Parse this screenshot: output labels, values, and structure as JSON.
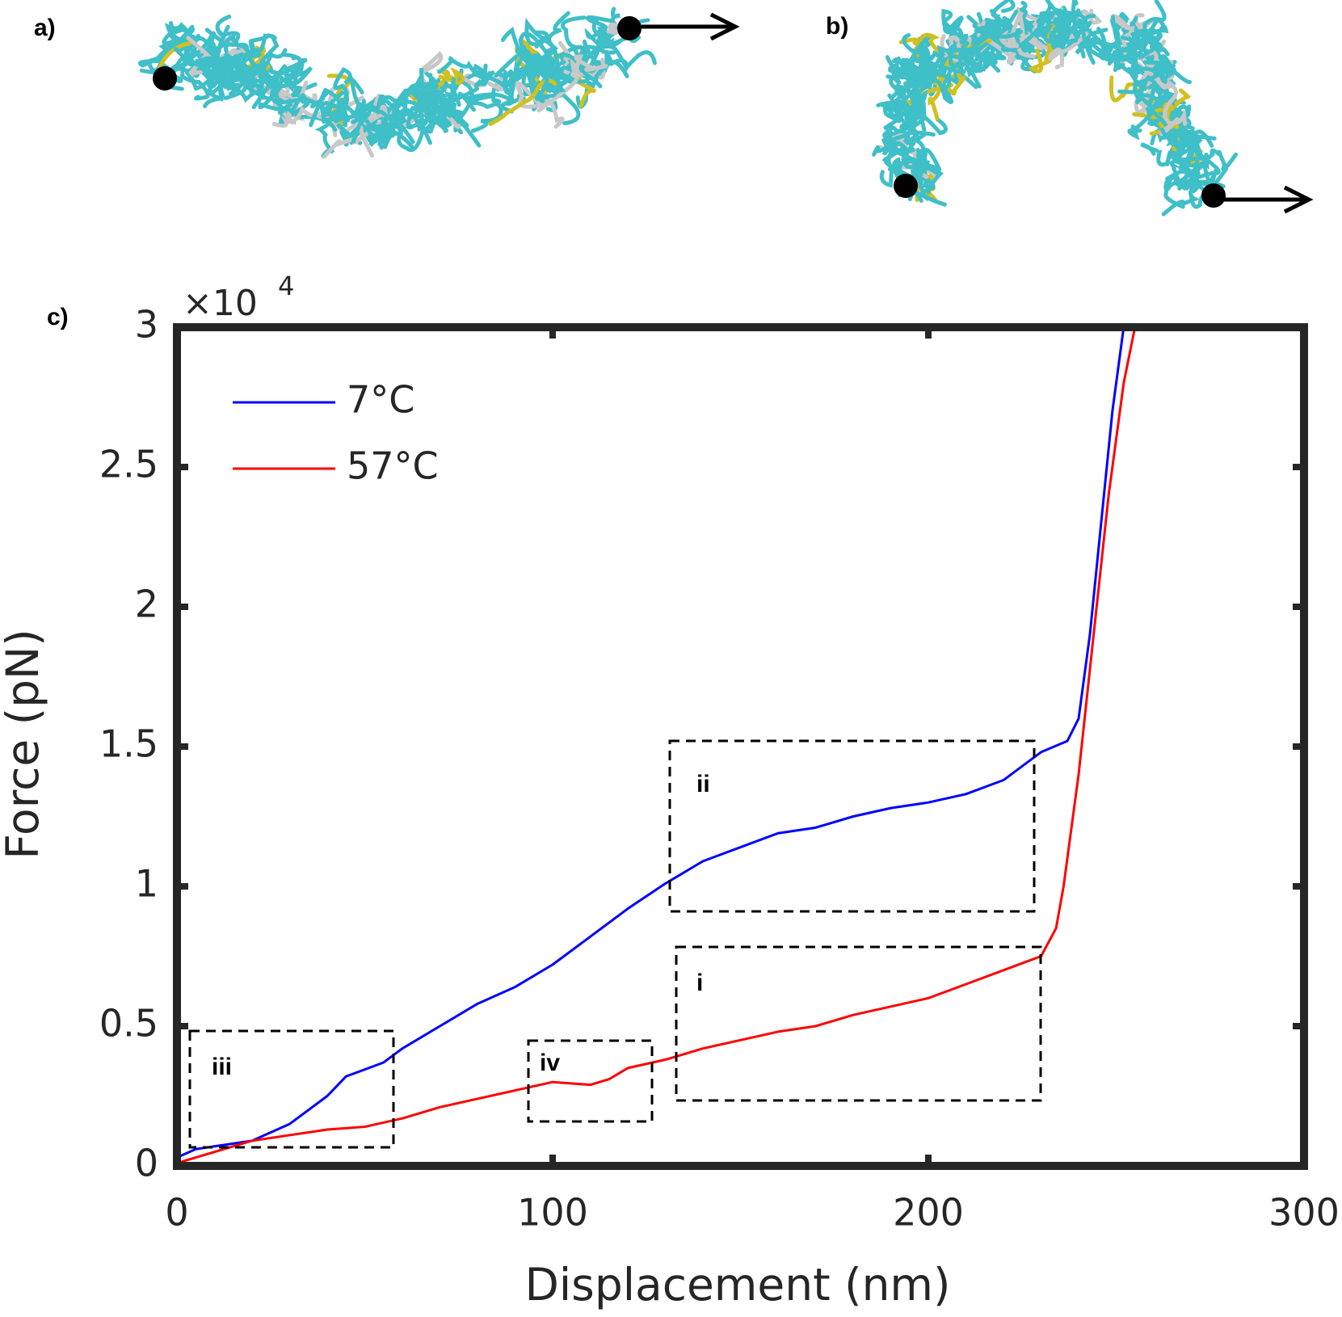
{
  "panels": [
    "a)",
    "b)",
    "c)"
  ],
  "chart_data": {
    "type": "line",
    "x_label": "Displacement (nm)",
    "y_label": "Force (pN)",
    "y_multiplier_base": "×10",
    "y_multiplier_exponent": "4",
    "xlim": [
      0,
      300
    ],
    "ylim": [
      0,
      3
    ],
    "xticks": [
      0,
      100,
      200,
      300
    ],
    "yticks": [
      0,
      0.5,
      1,
      1.5,
      2,
      2.5,
      3
    ],
    "legend": "upper left",
    "annotations": [
      "i",
      "ii",
      "iii",
      "iv"
    ],
    "series": [
      {
        "name": "7°C",
        "color": "#0000ff",
        "x": [
          0,
          5,
          10,
          20,
          30,
          40,
          45,
          55,
          60,
          70,
          80,
          90,
          100,
          110,
          120,
          130,
          140,
          150,
          160,
          170,
          180,
          190,
          200,
          210,
          220,
          230,
          237,
          240,
          243,
          246,
          249,
          252
        ],
        "values": [
          0.03,
          0.06,
          0.07,
          0.09,
          0.15,
          0.25,
          0.32,
          0.37,
          0.42,
          0.5,
          0.58,
          0.64,
          0.72,
          0.82,
          0.92,
          1.01,
          1.09,
          1.14,
          1.19,
          1.21,
          1.25,
          1.28,
          1.3,
          1.33,
          1.38,
          1.48,
          1.52,
          1.6,
          1.9,
          2.3,
          2.7,
          3.0
        ]
      },
      {
        "name": "57°C",
        "color": "#ff0000",
        "x": [
          0,
          10,
          20,
          30,
          40,
          50,
          60,
          70,
          80,
          90,
          100,
          110,
          115,
          120,
          130,
          140,
          150,
          160,
          170,
          180,
          190,
          200,
          210,
          220,
          230,
          234,
          236,
          240,
          244,
          248,
          252,
          255
        ],
        "values": [
          0.01,
          0.05,
          0.09,
          0.11,
          0.13,
          0.14,
          0.17,
          0.21,
          0.24,
          0.27,
          0.3,
          0.29,
          0.31,
          0.35,
          0.38,
          0.42,
          0.45,
          0.48,
          0.5,
          0.54,
          0.57,
          0.6,
          0.65,
          0.7,
          0.75,
          0.85,
          1.0,
          1.4,
          1.9,
          2.4,
          2.8,
          3.0
        ]
      }
    ]
  }
}
